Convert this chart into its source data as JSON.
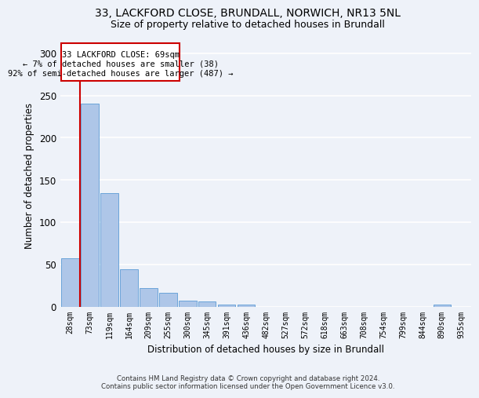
{
  "title_line1": "33, LACKFORD CLOSE, BRUNDALL, NORWICH, NR13 5NL",
  "title_line2": "Size of property relative to detached houses in Brundall",
  "xlabel": "Distribution of detached houses by size in Brundall",
  "ylabel": "Number of detached properties",
  "bar_labels": [
    "28sqm",
    "73sqm",
    "119sqm",
    "164sqm",
    "209sqm",
    "255sqm",
    "300sqm",
    "345sqm",
    "391sqm",
    "436sqm",
    "482sqm",
    "527sqm",
    "572sqm",
    "618sqm",
    "663sqm",
    "708sqm",
    "754sqm",
    "799sqm",
    "844sqm",
    "890sqm",
    "935sqm"
  ],
  "bar_values": [
    57,
    240,
    134,
    44,
    22,
    16,
    7,
    6,
    2,
    2,
    0,
    0,
    0,
    0,
    0,
    0,
    0,
    0,
    0,
    2,
    0
  ],
  "bar_color": "#aec6e8",
  "bar_edge_color": "#5b9bd5",
  "annotation_text_line1": "33 LACKFORD CLOSE: 69sqm",
  "annotation_text_line2": "← 7% of detached houses are smaller (38)",
  "annotation_text_line3": "92% of semi-detached houses are larger (487) →",
  "property_line_x": 0.5,
  "ylim": [
    0,
    310
  ],
  "yticks": [
    0,
    50,
    100,
    150,
    200,
    250,
    300
  ],
  "footer_line1": "Contains HM Land Registry data © Crown copyright and database right 2024.",
  "footer_line2": "Contains public sector information licensed under the Open Government Licence v3.0.",
  "bg_color": "#eef2f9",
  "grid_color": "#ffffff",
  "annotation_box_color": "#ffffff",
  "annotation_box_edge_color": "#cc0000",
  "property_line_color": "#cc0000",
  "title1_fontsize": 10,
  "title2_fontsize": 9
}
